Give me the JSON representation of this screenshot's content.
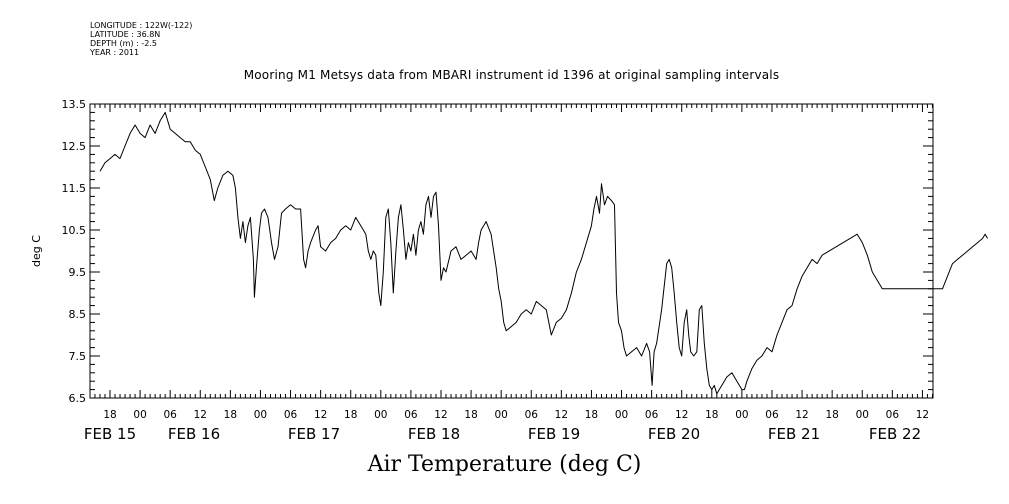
{
  "header": {
    "meta_lines": [
      "LONGITUDE : 122W(-122)",
      "LATITUDE : 36.8N",
      "DEPTH (m) : -2.5",
      "YEAR : 2011"
    ]
  },
  "chart_data": {
    "type": "line",
    "title": "Mooring M1 Metsys data from MBARI instrument id 1396 at original sampling intervals",
    "xlabel": "Air Temperature (deg C)",
    "ylabel": "deg C",
    "ylim": [
      6.5,
      13.5
    ],
    "yticks": [
      "6.5",
      "7.5",
      "8.5",
      "9.5",
      "10.5",
      "11.5",
      "12.5",
      "13.5"
    ],
    "xlim_hours": [
      -10,
      177
    ],
    "xtick_labels": [
      {
        "h": 0,
        "label": "18"
      },
      {
        "h": 6,
        "label": "00"
      },
      {
        "h": 12,
        "label": "06"
      },
      {
        "h": 18,
        "label": "12"
      },
      {
        "h": 24,
        "label": "18"
      },
      {
        "h": 30,
        "label": "00"
      },
      {
        "h": 36,
        "label": "06"
      },
      {
        "h": 42,
        "label": "12"
      },
      {
        "h": 48,
        "label": "18"
      },
      {
        "h": 54,
        "label": "00"
      },
      {
        "h": 60,
        "label": "06"
      },
      {
        "h": 66,
        "label": "12"
      },
      {
        "h": 72,
        "label": "18"
      },
      {
        "h": 78,
        "label": "00"
      },
      {
        "h": 84,
        "label": "06"
      },
      {
        "h": 90,
        "label": "12"
      },
      {
        "h": 96,
        "label": "18"
      },
      {
        "h": 102,
        "label": "00"
      },
      {
        "h": 108,
        "label": "06"
      },
      {
        "h": 114,
        "label": "12"
      },
      {
        "h": 120,
        "label": "18"
      },
      {
        "h": 126,
        "label": "00"
      },
      {
        "h": 132,
        "label": "06"
      },
      {
        "h": 138,
        "label": "12"
      },
      {
        "h": 144,
        "label": "18"
      },
      {
        "h": 150,
        "label": "00"
      },
      {
        "h": 156,
        "label": "06"
      },
      {
        "h": 162,
        "label": "12"
      },
      {
        "h": 168,
        "label": "18"
      },
      {
        "h": 174,
        "label": "00"
      }
    ],
    "xtick_labels_actual": [
      {
        "h": 2,
        "label": "18"
      },
      {
        "h": 8,
        "label": "00"
      },
      {
        "h": 14,
        "label": "06"
      },
      {
        "h": 20,
        "label": "12"
      },
      {
        "h": 26,
        "label": "18"
      },
      {
        "h": 32,
        "label": "00"
      },
      {
        "h": 38,
        "label": "06"
      },
      {
        "h": 44,
        "label": "12"
      },
      {
        "h": 50,
        "label": "18"
      },
      {
        "h": 56,
        "label": "00"
      },
      {
        "h": 62,
        "label": "06"
      },
      {
        "h": 68,
        "label": "12"
      },
      {
        "h": 74,
        "label": "18"
      },
      {
        "h": 80,
        "label": "00"
      },
      {
        "h": 86,
        "label": "06"
      },
      {
        "h": 92,
        "label": "12"
      },
      {
        "h": 98,
        "label": "18"
      },
      {
        "h": 104,
        "label": "00"
      },
      {
        "h": 110,
        "label": "06"
      },
      {
        "h": 116,
        "label": "12"
      },
      {
        "h": 122,
        "label": "18"
      },
      {
        "h": 128,
        "label": "00"
      },
      {
        "h": 134,
        "label": "06"
      },
      {
        "h": 140,
        "label": "12"
      },
      {
        "h": 146,
        "label": "18"
      },
      {
        "h": 152,
        "label": "00"
      },
      {
        "h": 158,
        "label": "06"
      },
      {
        "h": 164,
        "label": "12"
      }
    ],
    "day_labels": [
      "FEB 15",
      "FEB 16",
      "FEB 17",
      "FEB 18",
      "FEB 19",
      "FEB 20",
      "FEB 21",
      "FEB 22"
    ],
    "grid": false,
    "series": [
      {
        "points": [
          [
            0,
            11.9
          ],
          [
            0.5,
            12.0
          ],
          [
            1,
            12.1
          ],
          [
            2,
            12.2
          ],
          [
            3,
            12.3
          ],
          [
            4,
            12.2
          ],
          [
            5,
            12.5
          ],
          [
            6,
            12.8
          ],
          [
            7,
            13.0
          ],
          [
            8,
            12.8
          ],
          [
            9,
            12.7
          ],
          [
            10,
            13.0
          ],
          [
            11,
            12.8
          ],
          [
            12,
            13.1
          ],
          [
            13,
            13.3
          ],
          [
            14,
            12.9
          ],
          [
            15,
            12.8
          ],
          [
            16,
            12.7
          ],
          [
            17,
            12.6
          ],
          [
            18,
            12.6
          ],
          [
            19,
            12.4
          ],
          [
            20,
            12.3
          ],
          [
            21,
            12.0
          ],
          [
            22,
            11.7
          ],
          [
            22.8,
            11.2
          ],
          [
            23.5,
            11.5
          ],
          [
            24.5,
            11.8
          ],
          [
            25.5,
            11.9
          ],
          [
            26.5,
            11.8
          ],
          [
            27,
            11.5
          ],
          [
            27.5,
            10.8
          ],
          [
            28,
            10.3
          ],
          [
            28.5,
            10.7
          ],
          [
            29,
            10.2
          ],
          [
            29.5,
            10.6
          ],
          [
            30,
            10.8
          ],
          [
            30.6,
            9.8
          ],
          [
            30.8,
            8.9
          ],
          [
            31.2,
            9.6
          ],
          [
            31.8,
            10.5
          ],
          [
            32.2,
            10.9
          ],
          [
            32.8,
            11.0
          ],
          [
            33.5,
            10.8
          ],
          [
            34.2,
            10.2
          ],
          [
            34.8,
            9.8
          ],
          [
            35.5,
            10.1
          ],
          [
            36.2,
            10.9
          ],
          [
            37,
            11.0
          ],
          [
            38,
            11.1
          ],
          [
            39,
            11.0
          ],
          [
            40,
            11.0
          ],
          [
            40.6,
            9.8
          ],
          [
            41,
            9.6
          ],
          [
            41.5,
            10.0
          ],
          [
            42,
            10.2
          ],
          [
            43,
            10.5
          ],
          [
            43.5,
            10.6
          ],
          [
            44,
            10.1
          ],
          [
            45,
            10.0
          ],
          [
            46,
            10.2
          ],
          [
            47,
            10.3
          ],
          [
            48,
            10.5
          ],
          [
            49,
            10.6
          ],
          [
            50,
            10.5
          ],
          [
            51,
            10.8
          ],
          [
            52,
            10.6
          ],
          [
            53,
            10.4
          ],
          [
            53.5,
            10.0
          ],
          [
            54,
            9.8
          ],
          [
            54.5,
            10.0
          ],
          [
            55,
            9.9
          ],
          [
            55.6,
            9.0
          ],
          [
            56,
            8.7
          ],
          [
            56.5,
            9.5
          ],
          [
            57,
            10.8
          ],
          [
            57.5,
            11.0
          ],
          [
            58,
            10.2
          ],
          [
            58.5,
            9.0
          ],
          [
            59,
            10.0
          ],
          [
            59.5,
            10.8
          ],
          [
            60,
            11.1
          ],
          [
            60.5,
            10.5
          ],
          [
            61,
            9.8
          ],
          [
            61.5,
            10.2
          ],
          [
            62,
            10.0
          ],
          [
            62.5,
            10.4
          ],
          [
            63,
            9.9
          ],
          [
            63.5,
            10.5
          ],
          [
            64,
            10.7
          ],
          [
            64.5,
            10.4
          ],
          [
            65,
            11.1
          ],
          [
            65.5,
            11.3
          ],
          [
            66,
            10.8
          ],
          [
            66.5,
            11.3
          ],
          [
            67,
            11.4
          ],
          [
            67.5,
            10.6
          ],
          [
            68,
            9.3
          ],
          [
            68.5,
            9.6
          ],
          [
            69,
            9.5
          ],
          [
            70,
            10.0
          ],
          [
            71,
            10.1
          ],
          [
            72,
            9.8
          ],
          [
            73,
            9.9
          ],
          [
            74,
            10.0
          ],
          [
            75,
            9.8
          ],
          [
            75.5,
            10.2
          ],
          [
            76,
            10.5
          ],
          [
            77,
            10.7
          ],
          [
            78,
            10.4
          ],
          [
            79,
            9.6
          ],
          [
            79.5,
            9.1
          ],
          [
            80,
            8.8
          ],
          [
            80.5,
            8.3
          ],
          [
            81,
            8.1
          ],
          [
            82,
            8.2
          ],
          [
            83,
            8.3
          ],
          [
            84,
            8.5
          ],
          [
            85,
            8.6
          ],
          [
            86,
            8.5
          ],
          [
            87,
            8.8
          ],
          [
            88,
            8.7
          ],
          [
            89,
            8.6
          ],
          [
            89.5,
            8.3
          ],
          [
            90,
            8.0
          ],
          [
            91,
            8.3
          ],
          [
            92,
            8.4
          ],
          [
            93,
            8.6
          ],
          [
            94,
            9.0
          ],
          [
            95,
            9.5
          ],
          [
            96,
            9.8
          ],
          [
            97,
            10.2
          ],
          [
            98,
            10.6
          ],
          [
            98.5,
            11.0
          ],
          [
            99,
            11.3
          ],
          [
            99.6,
            10.9
          ],
          [
            100,
            11.6
          ],
          [
            100.6,
            11.1
          ],
          [
            101.2,
            11.3
          ],
          [
            102,
            11.2
          ],
          [
            102.6,
            11.1
          ],
          [
            103,
            9.0
          ],
          [
            103.4,
            8.3
          ],
          [
            104,
            8.1
          ],
          [
            104.5,
            7.7
          ],
          [
            105,
            7.5
          ],
          [
            106,
            7.6
          ],
          [
            107,
            7.7
          ],
          [
            108,
            7.5
          ],
          [
            109,
            7.8
          ],
          [
            109.6,
            7.6
          ],
          [
            110.1,
            6.8
          ],
          [
            110.5,
            7.6
          ],
          [
            111,
            7.8
          ],
          [
            112,
            8.6
          ],
          [
            113,
            9.7
          ],
          [
            113.5,
            9.8
          ],
          [
            114,
            9.6
          ],
          [
            114.5,
            9.0
          ],
          [
            115,
            8.3
          ],
          [
            115.5,
            7.7
          ],
          [
            116,
            7.5
          ],
          [
            116.5,
            8.3
          ],
          [
            117,
            8.6
          ],
          [
            117.4,
            8.0
          ],
          [
            117.8,
            7.6
          ],
          [
            118.4,
            7.5
          ],
          [
            119,
            7.6
          ],
          [
            119.5,
            8.6
          ],
          [
            120,
            8.7
          ],
          [
            120.5,
            7.8
          ],
          [
            121,
            7.2
          ],
          [
            121.5,
            6.8
          ],
          [
            122,
            6.7
          ],
          [
            122.5,
            6.8
          ],
          [
            123,
            6.6
          ],
          [
            124,
            6.8
          ],
          [
            125,
            7.0
          ],
          [
            126,
            7.1
          ],
          [
            127,
            6.9
          ],
          [
            128,
            6.7
          ],
          [
            128.5,
            6.7
          ],
          [
            129,
            6.9
          ],
          [
            130,
            7.2
          ],
          [
            131,
            7.4
          ],
          [
            132,
            7.5
          ],
          [
            133,
            7.7
          ],
          [
            134,
            7.6
          ],
          [
            135,
            8.0
          ],
          [
            136,
            8.3
          ],
          [
            137,
            8.6
          ],
          [
            138,
            8.7
          ],
          [
            139,
            9.1
          ],
          [
            140,
            9.4
          ],
          [
            141,
            9.6
          ],
          [
            142,
            9.8
          ],
          [
            143,
            9.7
          ],
          [
            144,
            9.9
          ],
          [
            151,
            10.4
          ],
          [
            152,
            10.2
          ],
          [
            153,
            9.9
          ],
          [
            154,
            9.5
          ],
          [
            155,
            9.3
          ],
          [
            156,
            9.1
          ],
          [
            168,
            9.1
          ],
          [
            169,
            9.4
          ],
          [
            170,
            9.7
          ],
          [
            171,
            9.8
          ],
          [
            172,
            9.9
          ],
          [
            173,
            10.0
          ],
          [
            174,
            10.1
          ],
          [
            175,
            10.2
          ],
          [
            176,
            10.3
          ],
          [
            176.5,
            10.4
          ],
          [
            177,
            10.3
          ]
        ]
      }
    ]
  }
}
